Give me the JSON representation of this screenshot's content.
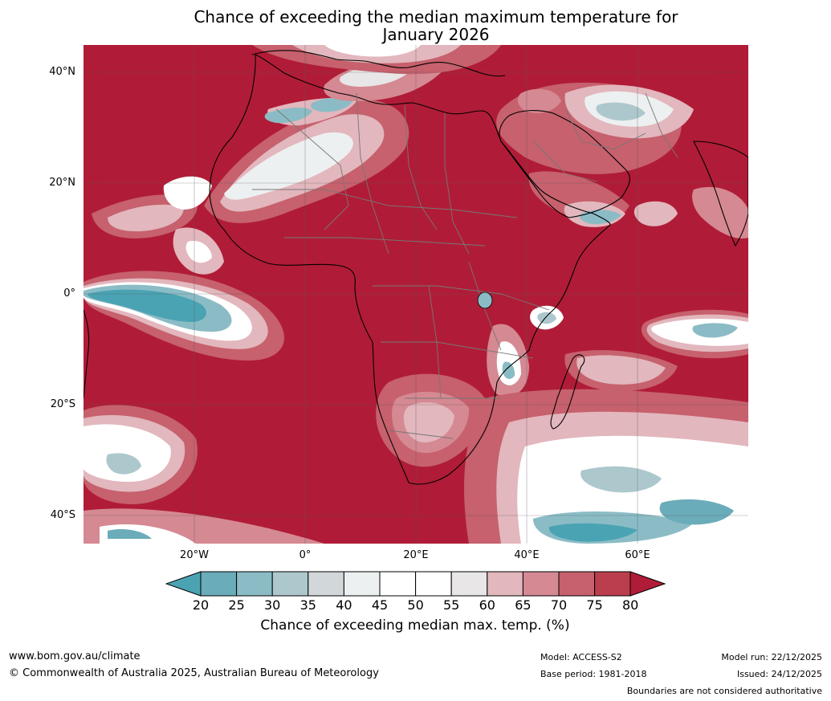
{
  "title_line1": "Chance of exceeding the median maximum temperature for",
  "title_line2": "January 2026",
  "lat_labels": [
    "40°N",
    "20°N",
    "0°",
    "20°S",
    "40°S"
  ],
  "lon_labels": [
    "20°W",
    "0°",
    "20°E",
    "40°E",
    "60°E"
  ],
  "colorbar": {
    "ticks": [
      "20",
      "25",
      "30",
      "35",
      "40",
      "45",
      "50",
      "55",
      "60",
      "65",
      "70",
      "75",
      "80"
    ],
    "colors": [
      "#4aa3b3",
      "#6aacb9",
      "#8bbcc6",
      "#adc8cd",
      "#d2d7d9",
      "#edf0f1",
      "#ffffff",
      "#ffffff",
      "#e8e6e7",
      "#e2b7bd",
      "#d58992",
      "#c6616d",
      "#ba3e4d",
      "#b01c37"
    ],
    "label": "Chance of exceeding median max. temp. (%)"
  },
  "footer": {
    "website": "www.bom.gov.au/climate",
    "copyright": "© Commonwealth of Australia 2025, Australian Bureau of Meteorology",
    "model": "Model: ACCESS-S2",
    "base_period": "Base period: 1981-2018",
    "model_run": "Model run: 22/12/2025",
    "issued": "Issued: 24/12/2025",
    "disclaimer": "Boundaries are not considered authoritative"
  }
}
